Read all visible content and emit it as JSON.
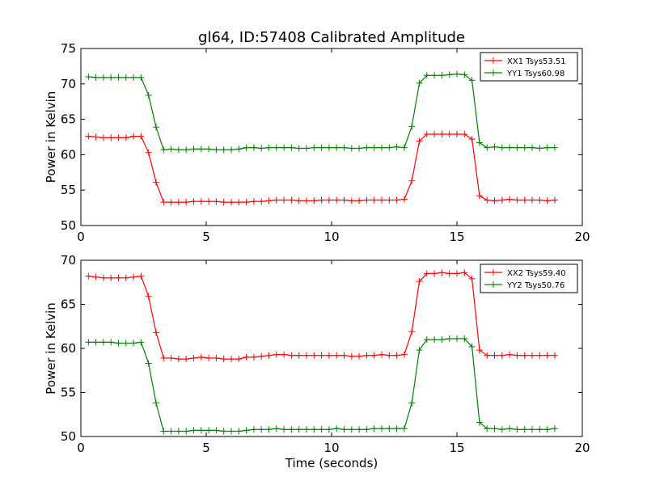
{
  "title": "gl64, ID:57408 Calibrated Amplitude",
  "colors": {
    "red": "#ff0000",
    "green": "#008000",
    "axis": "#000000",
    "background": "#ffffff"
  },
  "chart_data": [
    {
      "type": "line",
      "title": "gl64, ID:57408 Calibrated Amplitude",
      "xlabel": "",
      "ylabel": "Power in Kelvin",
      "xlim": [
        0,
        20
      ],
      "ylim": [
        50,
        75
      ],
      "xticks": [
        "0",
        "5",
        "10",
        "15",
        "20"
      ],
      "yticks": [
        "50",
        "55",
        "60",
        "65",
        "70",
        "75"
      ],
      "grid": false,
      "legend": "top-right",
      "x": [
        0.3,
        0.6,
        0.9,
        1.2,
        1.5,
        1.8,
        2.1,
        2.4,
        2.7,
        3.0,
        3.3,
        3.6,
        3.9,
        4.2,
        4.5,
        4.8,
        5.1,
        5.4,
        5.7,
        6.0,
        6.3,
        6.6,
        6.9,
        7.2,
        7.5,
        7.8,
        8.1,
        8.4,
        8.7,
        9.0,
        9.3,
        9.6,
        9.9,
        10.2,
        10.5,
        10.8,
        11.1,
        11.4,
        11.7,
        12.0,
        12.3,
        12.6,
        12.9,
        13.2,
        13.5,
        13.8,
        14.1,
        14.4,
        14.7,
        15.0,
        15.3,
        15.6,
        15.9,
        16.2,
        16.5,
        16.8,
        17.1,
        17.4,
        17.7,
        18.0,
        18.3,
        18.6,
        18.9
      ],
      "series": [
        {
          "name": "XX1 Tsys53.51",
          "color": "#ff0000",
          "values": [
            62.6,
            62.5,
            62.4,
            62.4,
            62.4,
            62.4,
            62.6,
            62.6,
            60.3,
            56.1,
            53.3,
            53.3,
            53.3,
            53.3,
            53.4,
            53.4,
            53.4,
            53.4,
            53.3,
            53.3,
            53.3,
            53.3,
            53.4,
            53.4,
            53.5,
            53.6,
            53.6,
            53.6,
            53.5,
            53.5,
            53.5,
            53.6,
            53.6,
            53.6,
            53.6,
            53.5,
            53.5,
            53.6,
            53.6,
            53.6,
            53.6,
            53.6,
            53.7,
            56.3,
            61.9,
            62.9,
            62.9,
            62.9,
            62.9,
            62.9,
            62.9,
            62.2,
            54.2,
            53.6,
            53.5,
            53.6,
            53.7,
            53.6,
            53.6,
            53.6,
            53.6,
            53.5,
            53.6
          ]
        },
        {
          "name": "YY1 Tsys60.98",
          "color": "#008000",
          "values": [
            71.0,
            70.9,
            70.9,
            70.9,
            70.9,
            70.9,
            70.9,
            70.9,
            68.4,
            63.9,
            60.7,
            60.8,
            60.7,
            60.7,
            60.8,
            60.8,
            60.8,
            60.7,
            60.7,
            60.7,
            60.8,
            61.0,
            61.0,
            60.9,
            61.0,
            61.0,
            61.0,
            61.0,
            60.9,
            60.9,
            61.0,
            61.0,
            61.0,
            61.0,
            61.0,
            60.9,
            60.9,
            61.0,
            61.0,
            61.0,
            61.0,
            61.1,
            61.0,
            64.0,
            70.1,
            71.2,
            71.2,
            71.2,
            71.3,
            71.4,
            71.3,
            70.5,
            61.7,
            61.0,
            61.1,
            61.0,
            61.0,
            61.0,
            61.0,
            61.0,
            60.9,
            61.0,
            61.0
          ]
        }
      ]
    },
    {
      "type": "line",
      "title": "",
      "xlabel": "Time (seconds)",
      "ylabel": "Power in Kelvin",
      "xlim": [
        0,
        20
      ],
      "ylim": [
        50,
        70
      ],
      "xticks": [
        "0",
        "5",
        "10",
        "15",
        "20"
      ],
      "yticks": [
        "50",
        "55",
        "60",
        "65",
        "70"
      ],
      "grid": false,
      "legend": "top-right",
      "x": [
        0.3,
        0.6,
        0.9,
        1.2,
        1.5,
        1.8,
        2.1,
        2.4,
        2.7,
        3.0,
        3.3,
        3.6,
        3.9,
        4.2,
        4.5,
        4.8,
        5.1,
        5.4,
        5.7,
        6.0,
        6.3,
        6.6,
        6.9,
        7.2,
        7.5,
        7.8,
        8.1,
        8.4,
        8.7,
        9.0,
        9.3,
        9.6,
        9.9,
        10.2,
        10.5,
        10.8,
        11.1,
        11.4,
        11.7,
        12.0,
        12.3,
        12.6,
        12.9,
        13.2,
        13.5,
        13.8,
        14.1,
        14.4,
        14.7,
        15.0,
        15.3,
        15.6,
        15.9,
        16.2,
        16.5,
        16.8,
        17.1,
        17.4,
        17.7,
        18.0,
        18.3,
        18.6,
        18.9
      ],
      "series": [
        {
          "name": "XX2 Tsys59.40",
          "color": "#ff0000",
          "values": [
            68.2,
            68.1,
            68.0,
            68.0,
            68.0,
            68.0,
            68.1,
            68.2,
            65.9,
            61.8,
            58.9,
            58.9,
            58.8,
            58.8,
            58.9,
            59.0,
            58.9,
            58.9,
            58.8,
            58.8,
            58.8,
            59.0,
            59.0,
            59.1,
            59.2,
            59.3,
            59.3,
            59.2,
            59.2,
            59.2,
            59.2,
            59.2,
            59.2,
            59.2,
            59.2,
            59.1,
            59.1,
            59.2,
            59.2,
            59.3,
            59.2,
            59.2,
            59.3,
            61.9,
            67.6,
            68.5,
            68.5,
            68.6,
            68.5,
            68.5,
            68.6,
            67.9,
            59.8,
            59.2,
            59.2,
            59.2,
            59.3,
            59.2,
            59.2,
            59.2,
            59.2,
            59.2,
            59.2
          ]
        },
        {
          "name": "YY2 Tsys50.76",
          "color": "#008000",
          "values": [
            60.7,
            60.7,
            60.7,
            60.7,
            60.6,
            60.6,
            60.6,
            60.7,
            58.3,
            53.8,
            50.6,
            50.6,
            50.6,
            50.6,
            50.7,
            50.7,
            50.7,
            50.7,
            50.6,
            50.6,
            50.6,
            50.7,
            50.8,
            50.8,
            50.8,
            50.9,
            50.8,
            50.8,
            50.8,
            50.8,
            50.8,
            50.8,
            50.8,
            50.9,
            50.8,
            50.8,
            50.8,
            50.8,
            50.9,
            50.9,
            50.9,
            50.9,
            50.9,
            53.8,
            59.8,
            61.0,
            61.0,
            61.0,
            61.1,
            61.1,
            61.1,
            60.2,
            51.6,
            50.9,
            50.9,
            50.8,
            50.9,
            50.8,
            50.8,
            50.8,
            50.8,
            50.8,
            50.9
          ]
        }
      ]
    }
  ]
}
